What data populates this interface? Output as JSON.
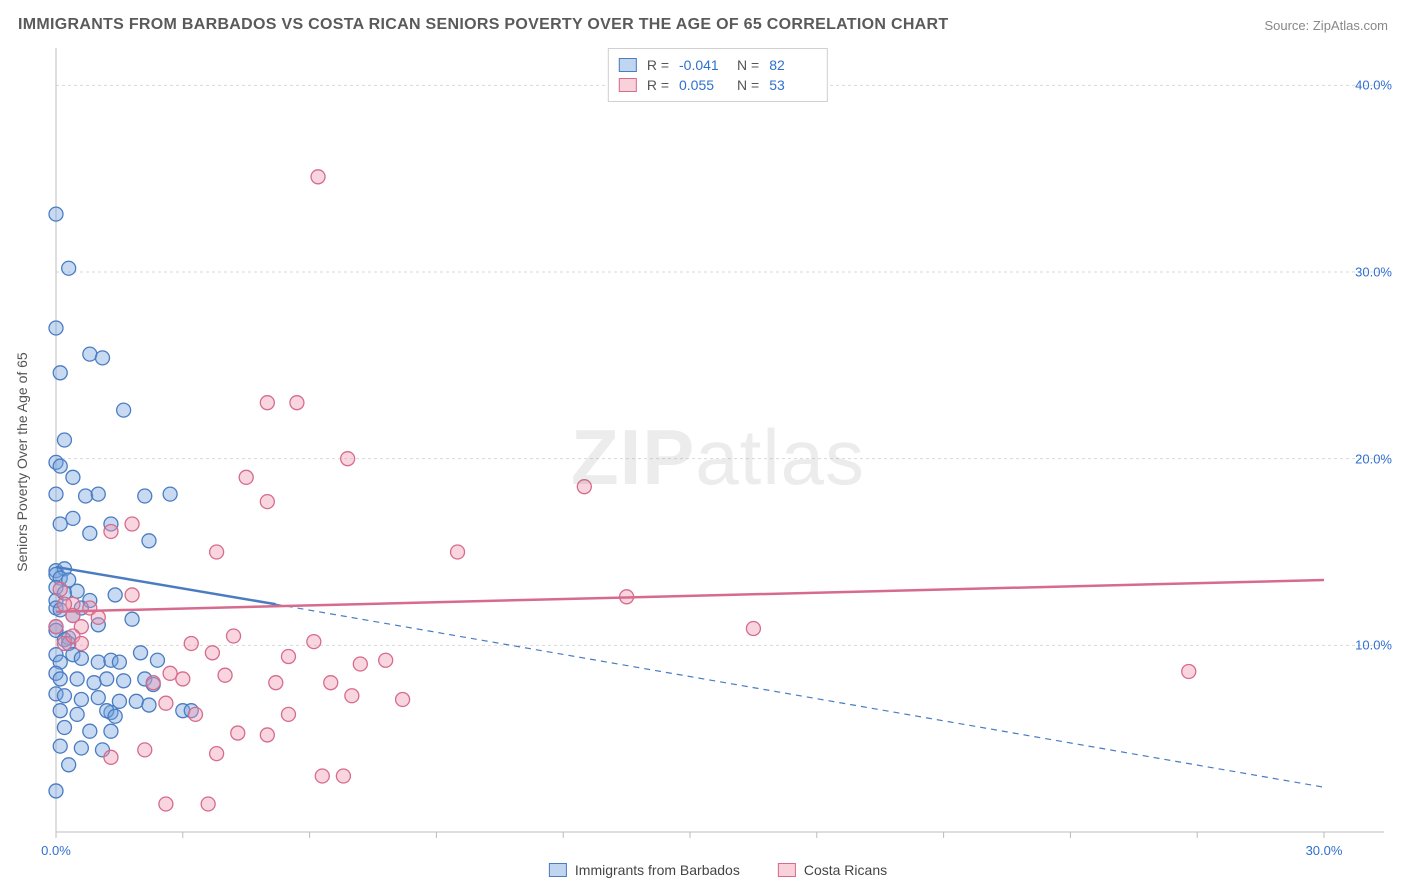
{
  "title": "IMMIGRANTS FROM BARBADOS VS COSTA RICAN SENIORS POVERTY OVER THE AGE OF 65 CORRELATION CHART",
  "source": "Source: ZipAtlas.com",
  "watermark": "ZIPatlas",
  "y_axis_label": "Seniors Poverty Over the Age of 65",
  "chart": {
    "type": "scatter",
    "background_color": "#ffffff",
    "grid_color": "#d9d9d9",
    "axis_color": "#bcbcbc",
    "tick_font_color": "#2f6fd0",
    "tick_fontsize": 13,
    "label_font_color": "#555555",
    "label_fontsize": 14,
    "title_font_color": "#5a5a5a",
    "title_fontsize": 16,
    "xlim": [
      0,
      30
    ],
    "ylim": [
      0,
      42
    ],
    "xticks": [
      0,
      30
    ],
    "xtick_labels": [
      "0.0%",
      "30.0%"
    ],
    "yticks": [
      10,
      20,
      30,
      40
    ],
    "ytick_labels": [
      "10.0%",
      "20.0%",
      "30.0%",
      "40.0%"
    ],
    "minor_x_step": 3,
    "marker_radius": 7,
    "marker_stroke_width": 1.3,
    "line_width_solid": 2.5,
    "line_width_dashed": 1.2,
    "series": [
      {
        "name": "Immigrants from Barbados",
        "key": "barbados",
        "fill": "rgba(115,163,222,0.40)",
        "stroke": "#4a7cc2",
        "trend_solid": {
          "x1": 0,
          "y1": 14.2,
          "x2": 5.2,
          "y2": 12.2
        },
        "trend_dashed": {
          "x1": 5.2,
          "y1": 12.2,
          "x2": 30,
          "y2": 2.4
        },
        "stats": {
          "R": "-0.041",
          "N": "82"
        },
        "points": [
          [
            0.0,
            33.1
          ],
          [
            0.3,
            30.2
          ],
          [
            0.0,
            27.0
          ],
          [
            0.8,
            25.6
          ],
          [
            1.1,
            25.4
          ],
          [
            0.1,
            24.6
          ],
          [
            0.2,
            21.0
          ],
          [
            1.6,
            22.6
          ],
          [
            0.0,
            19.8
          ],
          [
            0.1,
            19.6
          ],
          [
            0.4,
            19.0
          ],
          [
            0.0,
            18.1
          ],
          [
            0.7,
            18.0
          ],
          [
            1.0,
            18.1
          ],
          [
            2.1,
            18.0
          ],
          [
            0.1,
            16.5
          ],
          [
            0.4,
            16.8
          ],
          [
            0.8,
            16.0
          ],
          [
            1.3,
            16.5
          ],
          [
            2.2,
            15.6
          ],
          [
            0.0,
            14.0
          ],
          [
            0.2,
            14.1
          ],
          [
            0.0,
            13.8
          ],
          [
            0.1,
            13.6
          ],
          [
            0.3,
            13.5
          ],
          [
            0.0,
            13.1
          ],
          [
            0.0,
            12.4
          ],
          [
            0.2,
            12.8
          ],
          [
            0.5,
            12.9
          ],
          [
            0.8,
            12.4
          ],
          [
            1.4,
            12.7
          ],
          [
            0.0,
            12.0
          ],
          [
            0.1,
            11.9
          ],
          [
            0.4,
            11.6
          ],
          [
            0.6,
            12.0
          ],
          [
            1.0,
            11.1
          ],
          [
            1.8,
            11.4
          ],
          [
            0.0,
            11.0
          ],
          [
            0.0,
            10.8
          ],
          [
            0.3,
            10.4
          ],
          [
            0.2,
            10.3
          ],
          [
            0.3,
            10.1
          ],
          [
            0.0,
            9.5
          ],
          [
            0.1,
            9.1
          ],
          [
            0.4,
            9.5
          ],
          [
            0.6,
            9.3
          ],
          [
            1.0,
            9.1
          ],
          [
            1.3,
            9.2
          ],
          [
            1.3,
            6.4
          ],
          [
            1.5,
            9.1
          ],
          [
            2.0,
            9.6
          ],
          [
            2.4,
            9.2
          ],
          [
            0.0,
            8.5
          ],
          [
            0.1,
            8.2
          ],
          [
            0.5,
            8.2
          ],
          [
            0.9,
            8.0
          ],
          [
            1.2,
            8.2
          ],
          [
            1.6,
            8.1
          ],
          [
            2.1,
            8.2
          ],
          [
            0.0,
            7.4
          ],
          [
            0.2,
            7.3
          ],
          [
            0.6,
            7.1
          ],
          [
            1.0,
            7.2
          ],
          [
            1.5,
            7.0
          ],
          [
            1.9,
            7.0
          ],
          [
            2.2,
            6.8
          ],
          [
            2.3,
            7.9
          ],
          [
            0.1,
            6.5
          ],
          [
            0.5,
            6.3
          ],
          [
            1.2,
            6.5
          ],
          [
            1.4,
            6.2
          ],
          [
            0.2,
            5.6
          ],
          [
            0.8,
            5.4
          ],
          [
            1.3,
            5.4
          ],
          [
            0.1,
            4.6
          ],
          [
            0.6,
            4.5
          ],
          [
            1.1,
            4.4
          ],
          [
            0.3,
            3.6
          ],
          [
            0.0,
            2.2
          ],
          [
            3.0,
            6.5
          ],
          [
            3.2,
            6.5
          ],
          [
            2.7,
            18.1
          ]
        ]
      },
      {
        "name": "Costa Ricans",
        "key": "costa_ricans",
        "fill": "rgba(239,152,176,0.40)",
        "stroke": "#d66b8d",
        "trend_solid": {
          "x1": 0,
          "y1": 11.8,
          "x2": 30,
          "y2": 13.5
        },
        "trend_dashed": null,
        "stats": {
          "R": "0.055",
          "N": "53"
        },
        "points": [
          [
            6.2,
            35.1
          ],
          [
            5.0,
            23.0
          ],
          [
            5.7,
            23.0
          ],
          [
            4.5,
            19.0
          ],
          [
            6.9,
            20.0
          ],
          [
            12.5,
            18.5
          ],
          [
            5.0,
            17.7
          ],
          [
            1.3,
            16.1
          ],
          [
            1.8,
            16.5
          ],
          [
            3.8,
            15.0
          ],
          [
            9.5,
            15.0
          ],
          [
            1.8,
            12.7
          ],
          [
            0.8,
            12.0
          ],
          [
            0.4,
            12.2
          ],
          [
            0.1,
            13.0
          ],
          [
            0.2,
            12.2
          ],
          [
            0.4,
            11.6
          ],
          [
            1.0,
            11.5
          ],
          [
            0.0,
            11.0
          ],
          [
            0.6,
            11.0
          ],
          [
            13.5,
            12.6
          ],
          [
            16.5,
            10.9
          ],
          [
            0.2,
            10.1
          ],
          [
            0.4,
            10.5
          ],
          [
            0.6,
            10.1
          ],
          [
            7.2,
            9.0
          ],
          [
            7.8,
            9.2
          ],
          [
            3.2,
            10.1
          ],
          [
            3.7,
            9.6
          ],
          [
            4.0,
            8.4
          ],
          [
            4.2,
            10.5
          ],
          [
            5.5,
            9.4
          ],
          [
            6.1,
            10.2
          ],
          [
            2.3,
            8.0
          ],
          [
            2.7,
            8.5
          ],
          [
            3.0,
            8.2
          ],
          [
            5.2,
            8.0
          ],
          [
            5.5,
            6.3
          ],
          [
            6.5,
            8.0
          ],
          [
            7.0,
            7.3
          ],
          [
            8.2,
            7.1
          ],
          [
            2.6,
            6.9
          ],
          [
            3.3,
            6.3
          ],
          [
            3.8,
            4.2
          ],
          [
            4.3,
            5.3
          ],
          [
            5.0,
            5.2
          ],
          [
            6.3,
            3.0
          ],
          [
            6.8,
            3.0
          ],
          [
            1.3,
            4.0
          ],
          [
            2.1,
            4.4
          ],
          [
            2.6,
            1.5
          ],
          [
            3.6,
            1.5
          ],
          [
            26.8,
            8.6
          ]
        ]
      }
    ],
    "legend_top": {
      "border_color": "#d0d0d0",
      "rows": [
        {
          "swatch": "blue",
          "R_label": "R =",
          "N_label": "N ="
        },
        {
          "swatch": "pink",
          "R_label": "R =",
          "N_label": "N ="
        }
      ]
    },
    "legend_bottom": {
      "items": [
        {
          "swatch": "blue",
          "label_key": "series.0.name"
        },
        {
          "swatch": "pink",
          "label_key": "series.1.name"
        }
      ]
    }
  }
}
